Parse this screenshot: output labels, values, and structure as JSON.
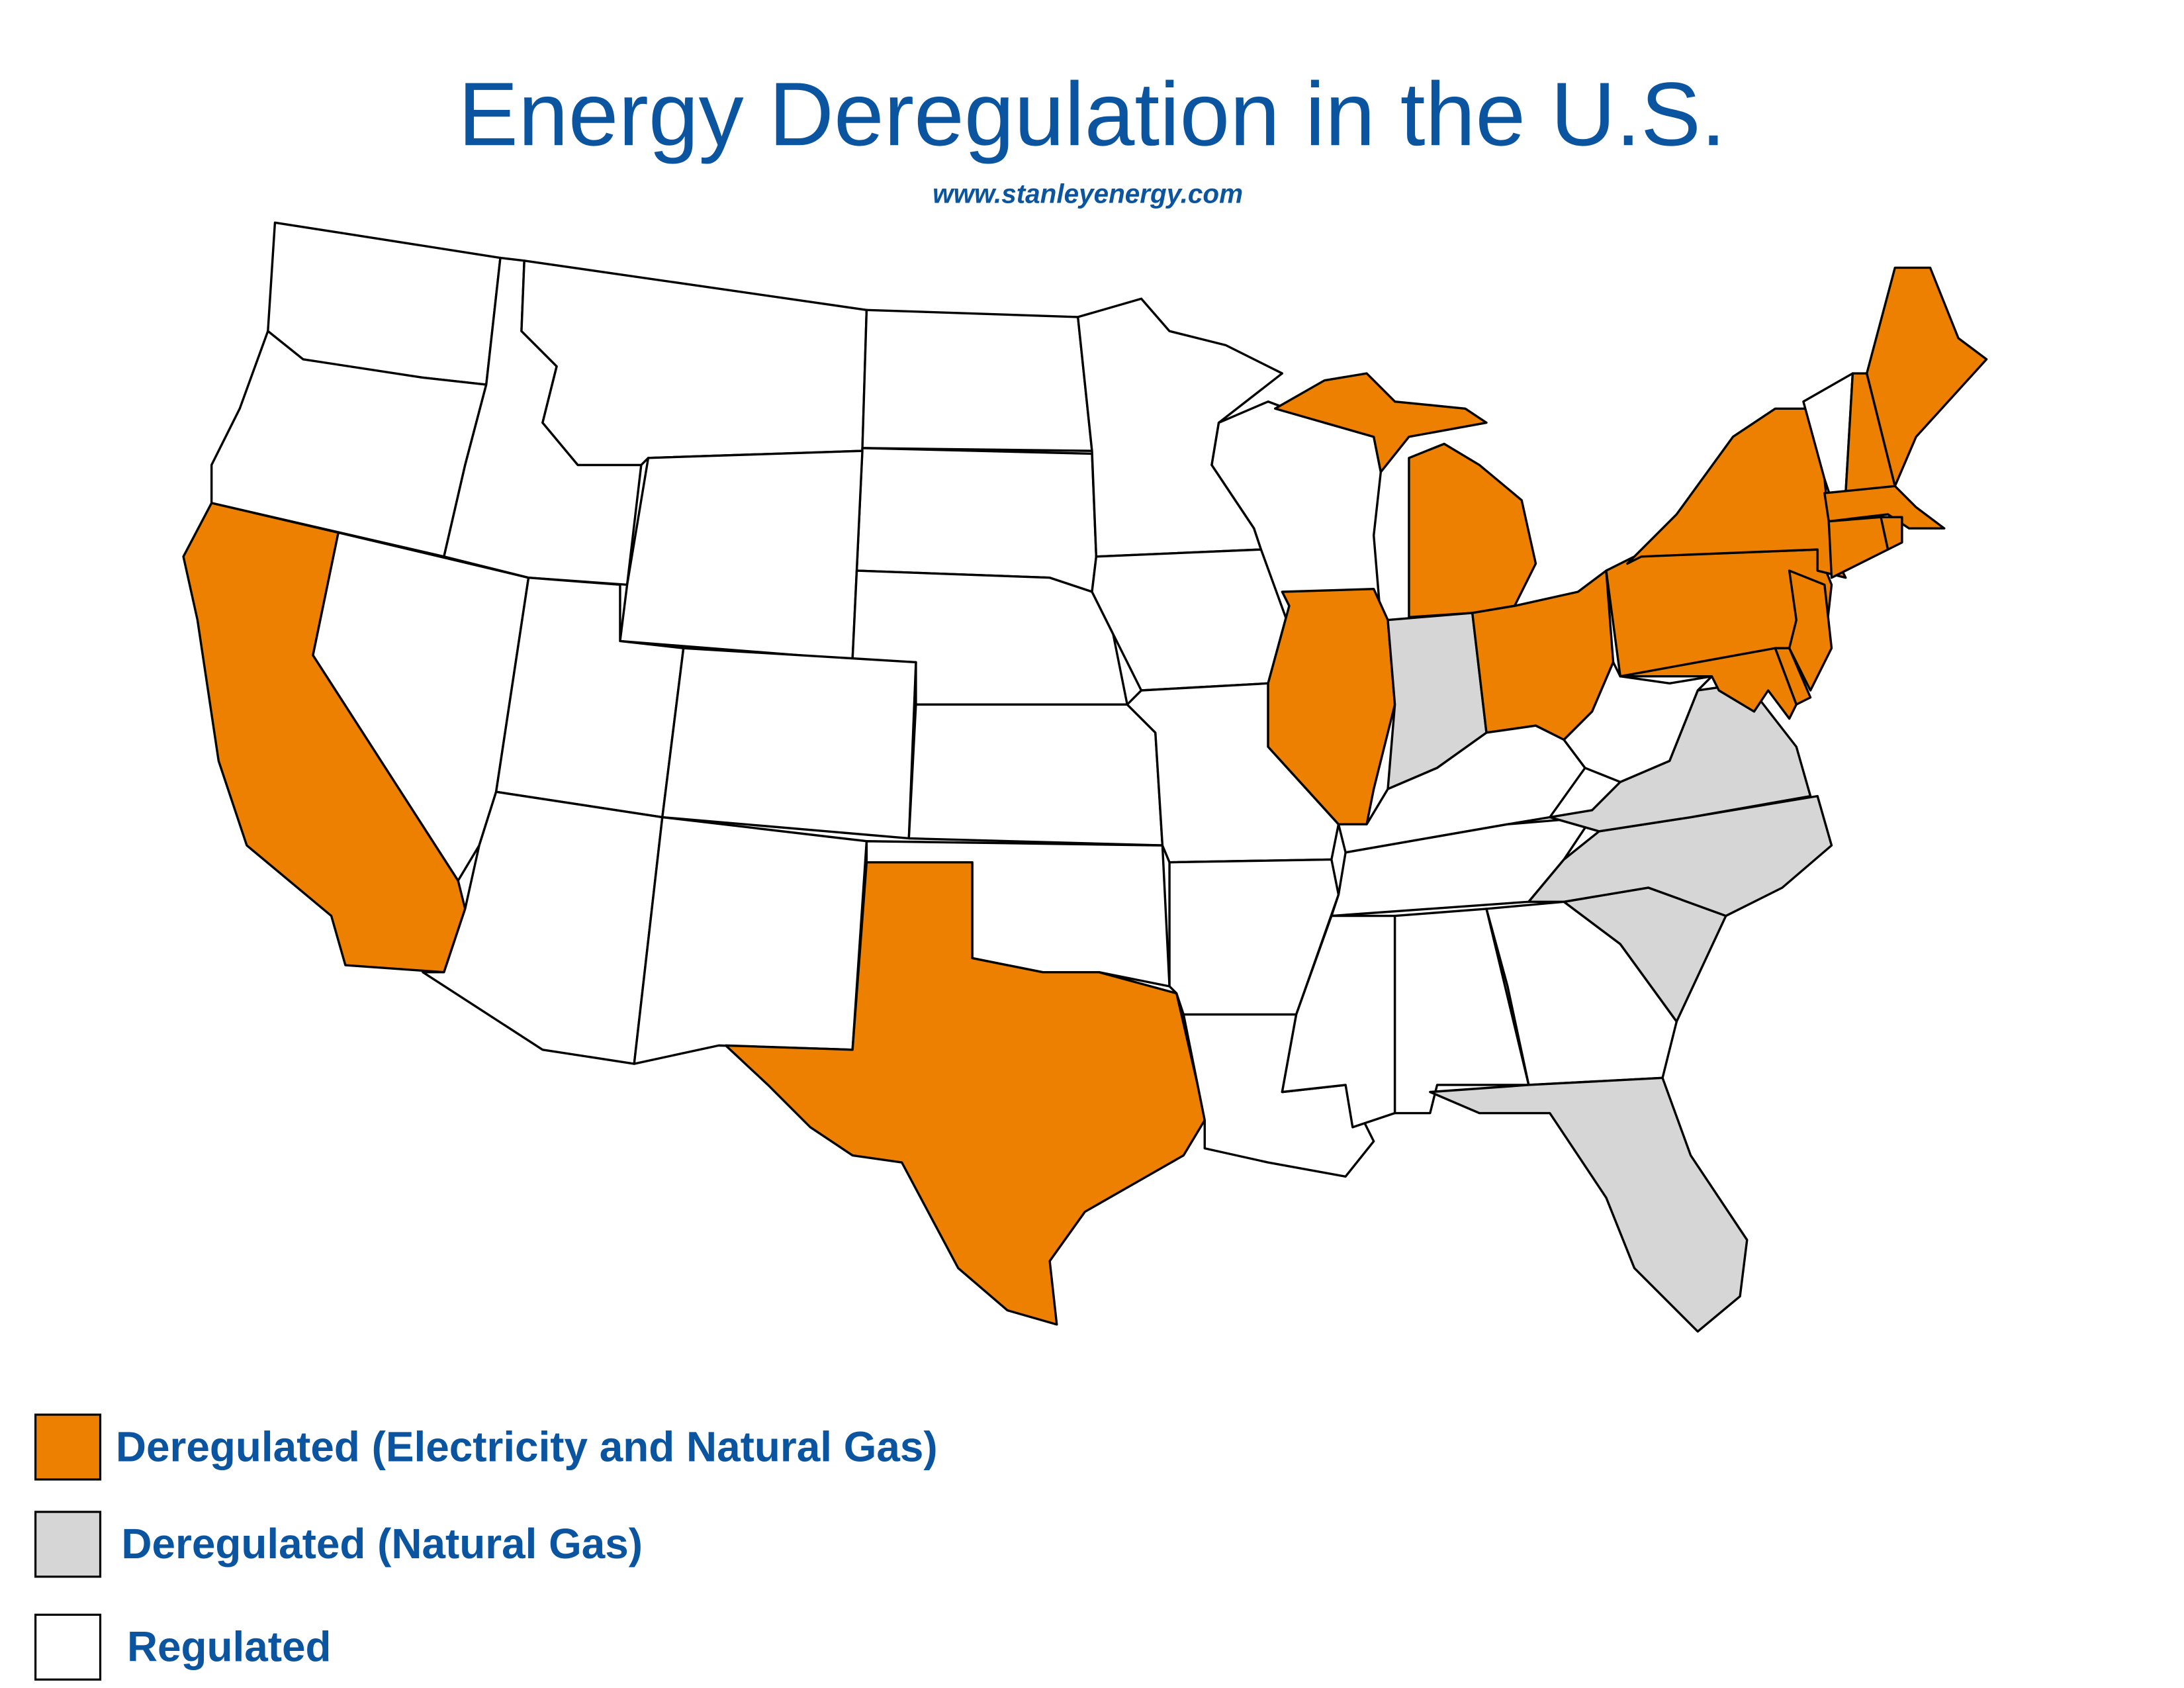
{
  "header": {
    "title": "Energy Deregulation in the U.S.",
    "subtitle": "www.stanleyenergy.com"
  },
  "legend": {
    "items": [
      {
        "label": "Deregulated (Electricity and Natural Gas)",
        "color": "#ed8000"
      },
      {
        "label": "Deregulated (Natural Gas)",
        "color": "#d6d6d6"
      },
      {
        "label": "Regulated",
        "color": "#ffffff"
      }
    ]
  }
}
